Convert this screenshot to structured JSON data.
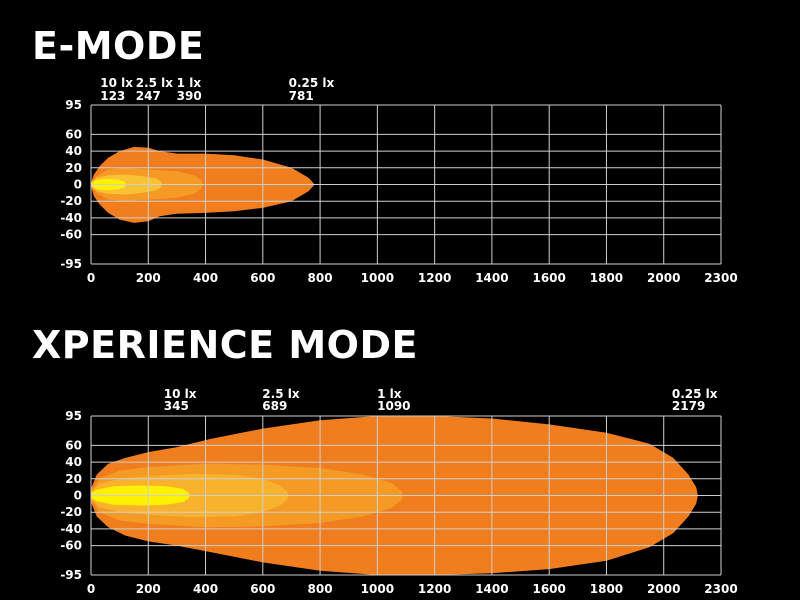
{
  "chart_data": [
    {
      "type": "area",
      "title": "E-MODE",
      "x_ticks": [
        0,
        200,
        400,
        600,
        800,
        1000,
        1200,
        1400,
        1600,
        1800,
        2000,
        2300
      ],
      "y_ticks": [
        95,
        60,
        40,
        20,
        0,
        -20,
        -40,
        -60,
        -95
      ],
      "xlim": [
        0,
        2300
      ],
      "ylim": [
        -95,
        95
      ],
      "grid": true,
      "isolux_annotations": [
        {
          "label": "10 lx",
          "distance": 123
        },
        {
          "label": "2.5 lx",
          "distance": 247
        },
        {
          "label": "1 lx",
          "distance": 390
        },
        {
          "label": "0.25 lx",
          "distance": 781
        }
      ],
      "contours": [
        {
          "lux": "0.25 lx",
          "color": "#f07d1e",
          "points": [
            [
              0,
              2
            ],
            [
              10,
              12
            ],
            [
              30,
              22
            ],
            [
              60,
              32
            ],
            [
              100,
              40
            ],
            [
              150,
              45
            ],
            [
              200,
              44
            ],
            [
              240,
              40
            ],
            [
              300,
              37
            ],
            [
              400,
              37
            ],
            [
              500,
              35
            ],
            [
              600,
              30
            ],
            [
              700,
              20
            ],
            [
              760,
              8
            ],
            [
              781,
              0
            ],
            [
              760,
              -8
            ],
            [
              700,
              -20
            ],
            [
              600,
              -28
            ],
            [
              500,
              -32
            ],
            [
              400,
              -34
            ],
            [
              300,
              -35
            ],
            [
              240,
              -38
            ],
            [
              200,
              -44
            ],
            [
              150,
              -46
            ],
            [
              100,
              -42
            ],
            [
              60,
              -34
            ],
            [
              30,
              -24
            ],
            [
              10,
              -14
            ],
            [
              0,
              -2
            ]
          ]
        },
        {
          "lux": "1 lx",
          "color": "#f59a25",
          "points": [
            [
              0,
              2
            ],
            [
              20,
              10
            ],
            [
              60,
              18
            ],
            [
              120,
              20
            ],
            [
              200,
              18
            ],
            [
              300,
              16
            ],
            [
              360,
              11
            ],
            [
              385,
              5
            ],
            [
              390,
              0
            ],
            [
              385,
              -5
            ],
            [
              360,
              -11
            ],
            [
              300,
              -16
            ],
            [
              200,
              -18
            ],
            [
              120,
              -20
            ],
            [
              60,
              -18
            ],
            [
              20,
              -10
            ],
            [
              0,
              -2
            ]
          ]
        },
        {
          "lux": "2.5 lx",
          "color": "#f9c235",
          "points": [
            [
              0,
              2
            ],
            [
              20,
              8
            ],
            [
              60,
              11
            ],
            [
              120,
              12
            ],
            [
              180,
              10
            ],
            [
              230,
              7
            ],
            [
              245,
              3
            ],
            [
              247,
              0
            ],
            [
              245,
              -3
            ],
            [
              230,
              -7
            ],
            [
              180,
              -10
            ],
            [
              120,
              -12
            ],
            [
              60,
              -11
            ],
            [
              20,
              -8
            ],
            [
              0,
              -2
            ]
          ]
        },
        {
          "lux": "10 lx",
          "color": "#fff200",
          "points": [
            [
              0,
              1
            ],
            [
              15,
              5
            ],
            [
              50,
              7
            ],
            [
              90,
              6
            ],
            [
              115,
              4
            ],
            [
              123,
              0
            ],
            [
              115,
              -4
            ],
            [
              90,
              -6
            ],
            [
              50,
              -7
            ],
            [
              15,
              -5
            ],
            [
              0,
              -1
            ]
          ]
        }
      ]
    },
    {
      "type": "area",
      "title": "XPERIENCE MODE",
      "x_ticks": [
        0,
        200,
        400,
        600,
        800,
        1000,
        1200,
        1400,
        1600,
        1800,
        2000,
        2300
      ],
      "y_ticks": [
        95,
        60,
        40,
        20,
        0,
        -20,
        -40,
        -60,
        -95
      ],
      "xlim": [
        0,
        2300
      ],
      "ylim": [
        -95,
        95
      ],
      "grid": true,
      "isolux_annotations": [
        {
          "label": "10 lx",
          "distance": 345
        },
        {
          "label": "2.5 lx",
          "distance": 689
        },
        {
          "label": "1 lx",
          "distance": 1090
        },
        {
          "label": "0.25 lx",
          "distance": 2179
        }
      ],
      "contours": [
        {
          "lux": "0.25 lx",
          "color": "#f07d1e",
          "points": [
            [
              0,
              8
            ],
            [
              20,
              25
            ],
            [
              60,
              38
            ],
            [
              120,
              45
            ],
            [
              200,
              52
            ],
            [
              300,
              58
            ],
            [
              420,
              68
            ],
            [
              600,
              80
            ],
            [
              800,
              90
            ],
            [
              1000,
              95
            ],
            [
              1200,
              95
            ],
            [
              1400,
              92
            ],
            [
              1600,
              85
            ],
            [
              1800,
              75
            ],
            [
              1950,
              62
            ],
            [
              2050,
              45
            ],
            [
              2130,
              25
            ],
            [
              2170,
              10
            ],
            [
              2179,
              0
            ],
            [
              2170,
              -10
            ],
            [
              2130,
              -25
            ],
            [
              2050,
              -45
            ],
            [
              1950,
              -62
            ],
            [
              1800,
              -78
            ],
            [
              1600,
              -88
            ],
            [
              1400,
              -93
            ],
            [
              1200,
              -95
            ],
            [
              1000,
              -95
            ],
            [
              800,
              -90
            ],
            [
              600,
              -80
            ],
            [
              420,
              -68
            ],
            [
              300,
              -60
            ],
            [
              200,
              -55
            ],
            [
              120,
              -48
            ],
            [
              60,
              -38
            ],
            [
              20,
              -25
            ],
            [
              0,
              -8
            ]
          ]
        },
        {
          "lux": "1 lx",
          "color": "#f59a25",
          "points": [
            [
              0,
              5
            ],
            [
              30,
              20
            ],
            [
              100,
              30
            ],
            [
              200,
              34
            ],
            [
              400,
              38
            ],
            [
              600,
              37
            ],
            [
              800,
              33
            ],
            [
              950,
              25
            ],
            [
              1050,
              15
            ],
            [
              1085,
              5
            ],
            [
              1090,
              0
            ],
            [
              1085,
              -5
            ],
            [
              1050,
              -15
            ],
            [
              950,
              -25
            ],
            [
              800,
              -33
            ],
            [
              600,
              -37
            ],
            [
              400,
              -38
            ],
            [
              200,
              -34
            ],
            [
              100,
              -30
            ],
            [
              30,
              -20
            ],
            [
              0,
              -5
            ]
          ]
        },
        {
          "lux": "2.5 lx",
          "color": "#f9b22e",
          "points": [
            [
              0,
              4
            ],
            [
              30,
              14
            ],
            [
              100,
              20
            ],
            [
              200,
              23
            ],
            [
              350,
              26
            ],
            [
              500,
              25
            ],
            [
              600,
              20
            ],
            [
              660,
              12
            ],
            [
              685,
              5
            ],
            [
              689,
              0
            ],
            [
              685,
              -5
            ],
            [
              660,
              -12
            ],
            [
              600,
              -20
            ],
            [
              500,
              -25
            ],
            [
              350,
              -26
            ],
            [
              200,
              -23
            ],
            [
              100,
              -20
            ],
            [
              30,
              -14
            ],
            [
              0,
              -4
            ]
          ]
        },
        {
          "lux": "10 lx",
          "color": "#fff200",
          "points": [
            [
              0,
              3
            ],
            [
              20,
              7
            ],
            [
              80,
              11
            ],
            [
              180,
              12
            ],
            [
              260,
              11
            ],
            [
              320,
              8
            ],
            [
              340,
              4
            ],
            [
              345,
              0
            ],
            [
              340,
              -4
            ],
            [
              320,
              -8
            ],
            [
              260,
              -11
            ],
            [
              180,
              -12
            ],
            [
              80,
              -11
            ],
            [
              20,
              -7
            ],
            [
              0,
              -3
            ]
          ]
        }
      ]
    }
  ]
}
